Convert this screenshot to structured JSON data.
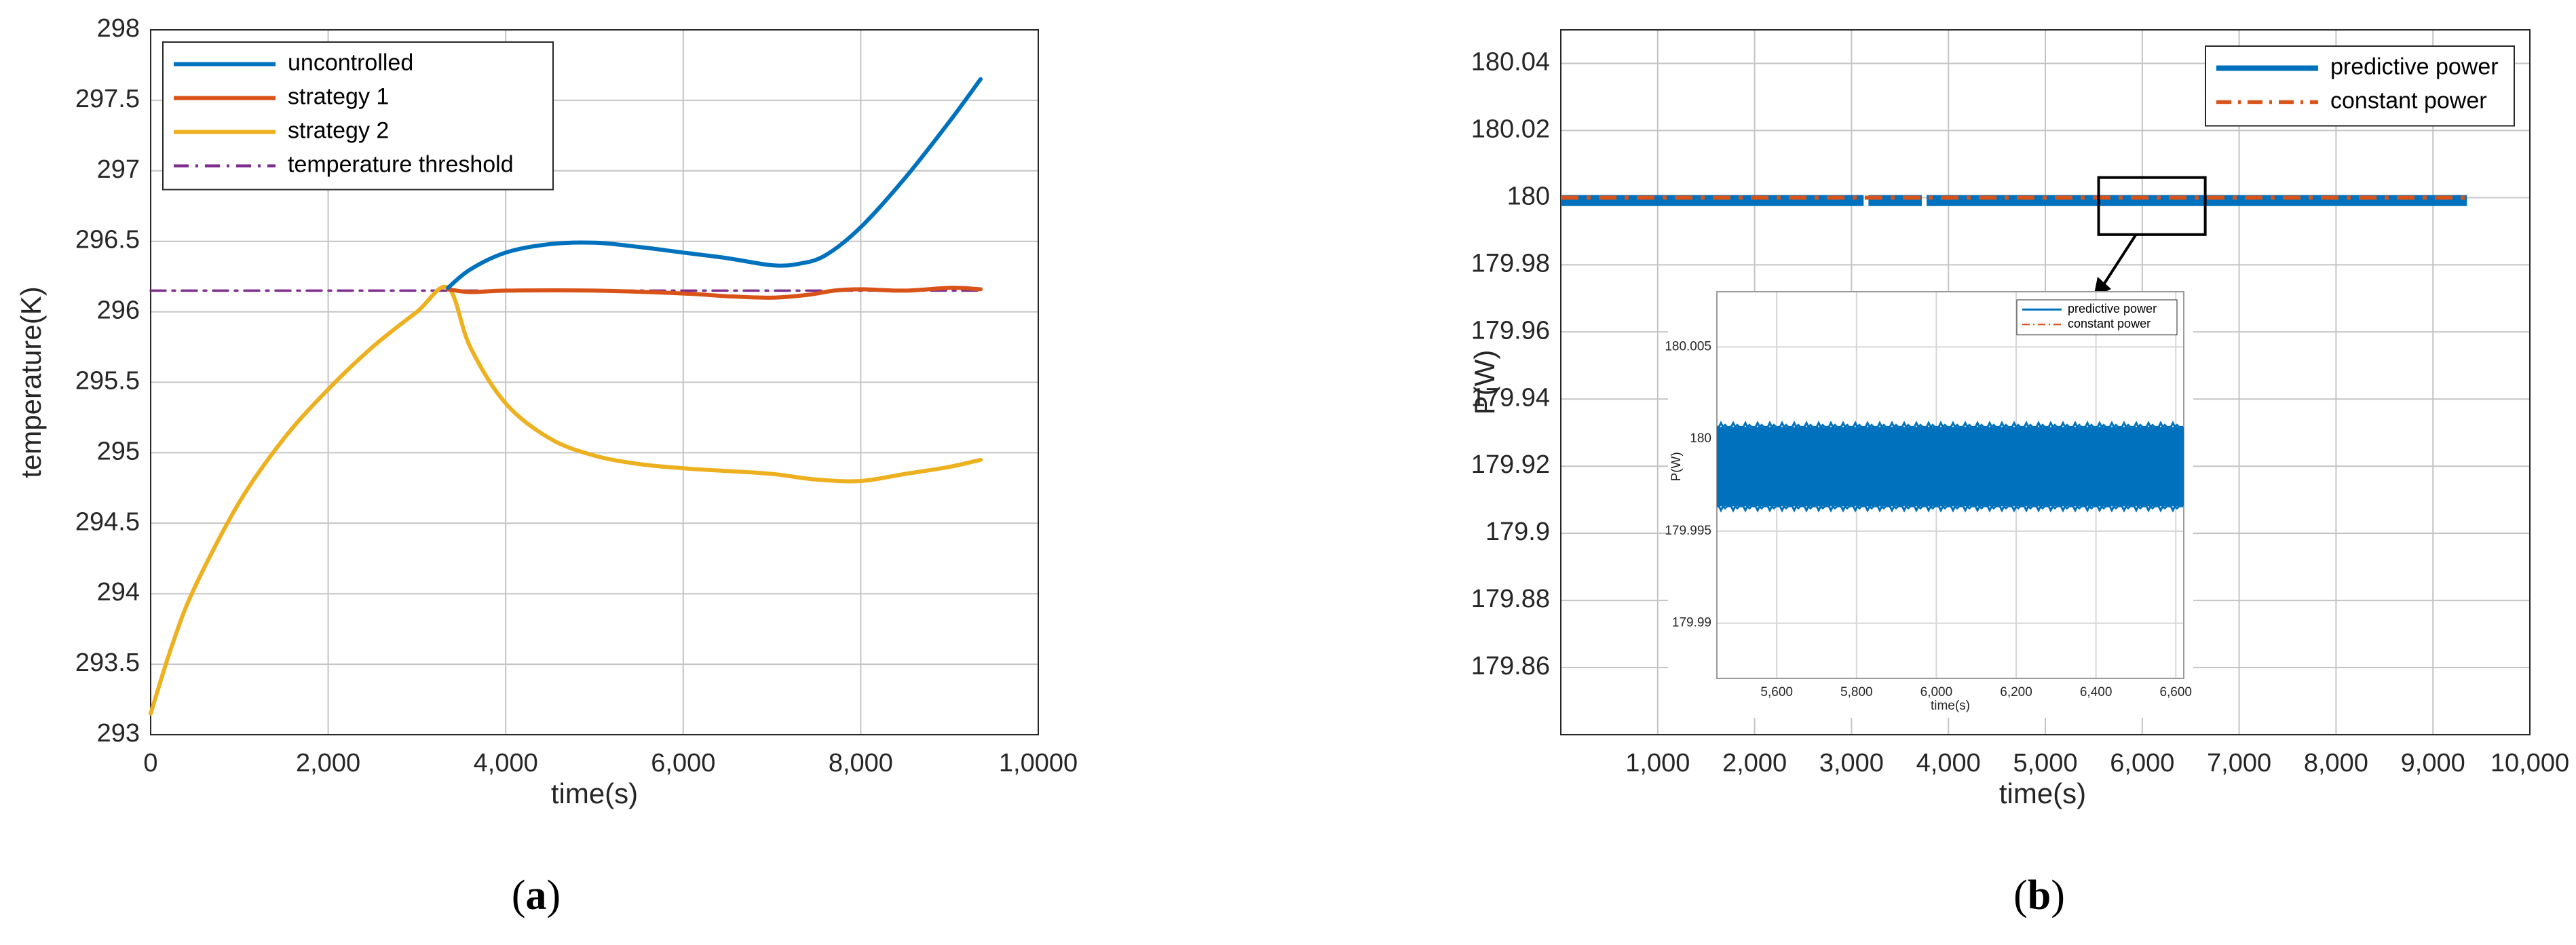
{
  "chart_data": [
    {
      "type": "line",
      "panel_caption": {
        "open": "(",
        "letter": "a",
        "close": ")"
      },
      "xlabel": "time(s)",
      "ylabel": "temperature(K)",
      "xlim": [
        0,
        10000
      ],
      "ylim": [
        293,
        298
      ],
      "x_ticks": [
        {
          "value": 0,
          "label": "0"
        },
        {
          "value": 2000,
          "label": "2,000"
        },
        {
          "value": 4000,
          "label": "4,000"
        },
        {
          "value": 6000,
          "label": "6,000"
        },
        {
          "value": 8000,
          "label": "8,000"
        },
        {
          "value": 10000,
          "label": "1,0000"
        }
      ],
      "y_ticks": [
        {
          "value": 293,
          "label": "293"
        },
        {
          "value": 293.5,
          "label": "293.5"
        },
        {
          "value": 294,
          "label": "294"
        },
        {
          "value": 294.5,
          "label": "294.5"
        },
        {
          "value": 295,
          "label": "295"
        },
        {
          "value": 295.5,
          "label": "295.5"
        },
        {
          "value": 296,
          "label": "296"
        },
        {
          "value": 296.5,
          "label": "296.5"
        },
        {
          "value": 297,
          "label": "297"
        },
        {
          "value": 297.5,
          "label": "297.5"
        },
        {
          "value": 298,
          "label": "298"
        }
      ],
      "grid": true,
      "legend_position": "top-left",
      "series": [
        {
          "name": "uncontrolled",
          "color": "#0072BD",
          "style": "solid",
          "x": [
            3350,
            3600,
            4000,
            4500,
            5000,
            5500,
            6000,
            6500,
            7000,
            7300,
            7600,
            8000,
            8500,
            9000,
            9350
          ],
          "y": [
            296.17,
            296.3,
            296.42,
            296.48,
            296.49,
            296.46,
            296.42,
            296.38,
            296.33,
            296.34,
            296.4,
            296.6,
            296.95,
            297.35,
            297.65
          ]
        },
        {
          "name": "strategy 1",
          "color": "#D95319",
          "style": "solid",
          "x": [
            3350,
            3600,
            4000,
            5000,
            6000,
            6500,
            7000,
            7400,
            7700,
            8000,
            8500,
            9000,
            9350
          ],
          "y": [
            296.16,
            296.14,
            296.15,
            296.15,
            296.13,
            296.11,
            296.1,
            296.12,
            296.15,
            296.16,
            296.15,
            296.17,
            296.16
          ]
        },
        {
          "name": "strategy 2",
          "color": "#EDB120",
          "style": "solid",
          "x": [
            0,
            250,
            500,
            1000,
            1500,
            2000,
            2500,
            3000,
            3350,
            3600,
            4000,
            4500,
            5000,
            5500,
            6000,
            6500,
            7000,
            7500,
            8000,
            8500,
            9000,
            9350
          ],
          "y": [
            293.15,
            293.65,
            294.05,
            294.65,
            295.1,
            295.45,
            295.75,
            296.0,
            296.17,
            295.75,
            295.35,
            295.1,
            294.98,
            294.92,
            294.89,
            294.87,
            294.85,
            294.81,
            294.8,
            294.85,
            294.9,
            294.95
          ]
        },
        {
          "name": "temperature threshold",
          "color": "#7E2F8E",
          "style": "dashdot",
          "x": [
            0,
            9350
          ],
          "y": [
            296.15,
            296.15
          ]
        }
      ]
    },
    {
      "type": "line",
      "panel_caption": {
        "open": "(",
        "letter": "b",
        "close": ")"
      },
      "xlabel": "time(s)",
      "ylabel": "P(W)",
      "xlim": [
        0,
        10000
      ],
      "ylim": [
        179.84,
        180.05
      ],
      "x_ticks": [
        {
          "value": 1000,
          "label": "1,000"
        },
        {
          "value": 2000,
          "label": "2,000"
        },
        {
          "value": 3000,
          "label": "3,000"
        },
        {
          "value": 4000,
          "label": "4,000"
        },
        {
          "value": 5000,
          "label": "5,000"
        },
        {
          "value": 6000,
          "label": "6,000"
        },
        {
          "value": 7000,
          "label": "7,000"
        },
        {
          "value": 8000,
          "label": "8,000"
        },
        {
          "value": 9000,
          "label": "9,000"
        },
        {
          "value": 10000,
          "label": "10,000"
        }
      ],
      "y_ticks": [
        {
          "value": 179.86,
          "label": "179.86"
        },
        {
          "value": 179.88,
          "label": "179.88"
        },
        {
          "value": 179.9,
          "label": "179.9"
        },
        {
          "value": 179.92,
          "label": "179.92"
        },
        {
          "value": 179.94,
          "label": "179.94"
        },
        {
          "value": 179.96,
          "label": "179.96"
        },
        {
          "value": 179.98,
          "label": "179.98"
        },
        {
          "value": 180,
          "label": "180"
        },
        {
          "value": 180.02,
          "label": "180.02"
        },
        {
          "value": 180.04,
          "label": "180.04"
        }
      ],
      "grid": true,
      "legend_position": "top-right",
      "series": [
        {
          "name": "predictive power",
          "color": "#0072BD",
          "style": "solid",
          "x_range": [
            0,
            9350
          ],
          "center": 179.999,
          "band": [
            179.9975,
            180.0008
          ],
          "gaps_at": [
            3150,
            3750
          ]
        },
        {
          "name": "constant power",
          "color": "#D95319",
          "style": "dashdot",
          "x": [
            0,
            9350
          ],
          "y": [
            180,
            180
          ]
        }
      ],
      "zoom_box": {
        "x": [
          5550,
          6650
        ],
        "y": [
          179.989,
          180.006
        ]
      },
      "inset": {
        "xlabel": "time(s)",
        "ylabel": "P(W)",
        "xlim": [
          5450,
          6620
        ],
        "ylim": [
          179.987,
          180.008
        ],
        "x_ticks": [
          {
            "value": 5600,
            "label": "5,600"
          },
          {
            "value": 5800,
            "label": "5,800"
          },
          {
            "value": 6000,
            "label": "6,000"
          },
          {
            "value": 6200,
            "label": "6,200"
          },
          {
            "value": 6400,
            "label": "6,400"
          },
          {
            "value": 6600,
            "label": "6,600"
          }
        ],
        "y_ticks": [
          {
            "value": 179.99,
            "label": "179.99"
          },
          {
            "value": 179.995,
            "label": "179.995"
          },
          {
            "value": 180,
            "label": "180"
          },
          {
            "value": 180.005,
            "label": "180.005"
          }
        ],
        "legend": [
          {
            "name": "predictive power",
            "color": "#0072BD",
            "style": "solid"
          },
          {
            "name": "constant power",
            "color": "#D95319",
            "style": "dashdot"
          }
        ],
        "band": [
          179.9962,
          180.0008
        ]
      }
    }
  ]
}
